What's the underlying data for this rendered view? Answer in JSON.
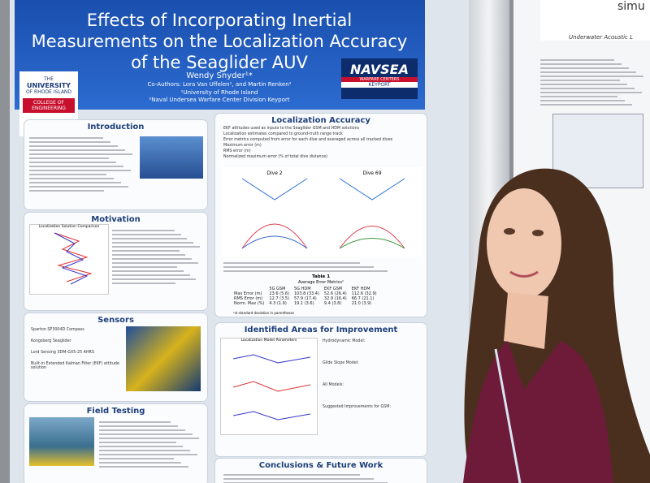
{
  "poster": {
    "title": "Effects of Incorporating Inertial Measurements on the Localization Accuracy of the Seaglider AUV",
    "presenter": "Wendy Snyder¹*",
    "coauthors": "Co-Authors: Lora Van Uffelen¹, and Martin Renken²",
    "affiliations": [
      "¹University of Rhode Island",
      "²Naval Undersea Warfare Center Division Keyport"
    ],
    "uri_logo": [
      "THE",
      "UNIVERSITY",
      "OF RHODE ISLAND",
      "COLLEGE OF ENGINEERING"
    ],
    "navsea_logo": [
      "NAVSEA",
      "WARFARE CENTERS",
      "KEYPORT"
    ],
    "sections": {
      "introduction": "Introduction",
      "motivation": "Motivation",
      "sensors": "Sensors",
      "field_testing": "Field Testing",
      "localization": "Localization Accuracy",
      "improvement": "Identified Areas for Improvement",
      "conclusions": "Conclusions & Future Work"
    },
    "localization_bullets": [
      "EKF attitudes used as inputs to the Seaglider GSM and HDM solutions",
      "Localization estimates compared to ground-truth range track",
      "Error metrics computed from error for each dive and averaged across all tracked dives",
      "Maximum error (m)",
      "RMS error (m)",
      "Normalized maximum error (% of total dive distance)"
    ],
    "plot_titles": [
      "Dive 2",
      "Dive 69"
    ],
    "motivation_plot_title": "Localization Solution Comparison",
    "improvement_plot_title": "Localization Model Parameters",
    "table": {
      "caption": "Table 1",
      "title": "Average Error Metrics¹",
      "columns": [
        "5G GSM",
        "5G HDM",
        "EKF GSM",
        "EKF HDM"
      ],
      "rows": [
        [
          "Max Error (m)",
          "23.6 (5.6)",
          "103.8 (33.4)",
          "52.6 (26.4)",
          "112.6 (32.9)"
        ],
        [
          "RMS Error (m)",
          "12.7 (3.5)",
          "57.9 (17.4)",
          "32.9 (16.4)",
          "66.7 (21.1)"
        ],
        [
          "Norm. Max (%)",
          "4.3 (1.9)",
          "19.1 (3.6)",
          "9.4 (3.8)",
          "21.0 (3.9)"
        ]
      ],
      "footnote": "¹st standard deviation in parentheses"
    },
    "sensor_bullets": [
      "Sparton SP3004D Compass",
      "Kongsberg Seaglider",
      "Lord Sensing 3DM-GX5-25 AHRS",
      "Built-in Extended Kalman Filter (EKF) attitude solution"
    ],
    "improvement_bullets": [
      "Hydrodynamic Model:",
      "Glide Slope Model:",
      "All Models:",
      "Suggested Improvements for GSM:"
    ],
    "side_poster": {
      "header": "simu",
      "subtitle": "Underwater Acoustic L"
    }
  }
}
